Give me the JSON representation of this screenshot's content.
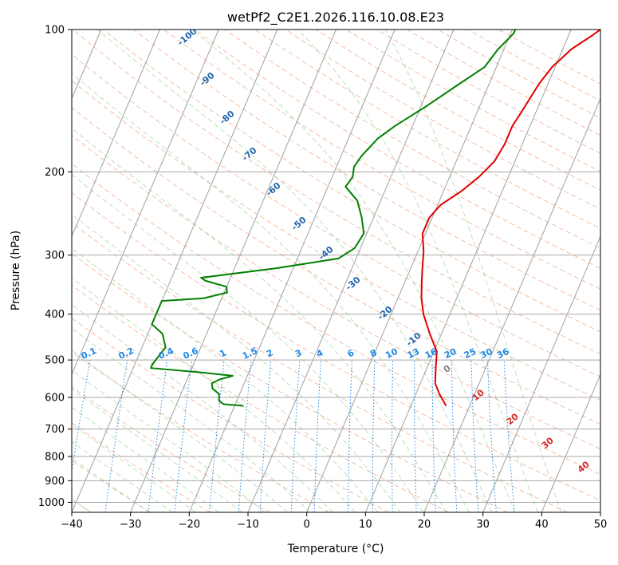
{
  "chart_data": {
    "type": "line",
    "title": "wetPf2_C2E1.2026.116.10.08.E23",
    "xlabel": "Temperature (°C)",
    "ylabel": "Pressure (hPa)",
    "xlim": [
      -40,
      50
    ],
    "ylim": [
      1050,
      100
    ],
    "y_scale": "log",
    "x_ticks": [
      -40,
      -30,
      -20,
      -10,
      0,
      10,
      20,
      30,
      40,
      50
    ],
    "x_tick_labels": [
      "−40",
      "−30",
      "−20",
      "−10",
      "0",
      "10",
      "20",
      "30",
      "40",
      "50"
    ],
    "y_ticks": [
      1000,
      900,
      800,
      700,
      600,
      500,
      400,
      300,
      200,
      100
    ],
    "y_tick_labels": [
      "1000",
      "900",
      "800",
      "700",
      "600",
      "500",
      "400",
      "300",
      "200",
      "100"
    ],
    "grid": true,
    "series": [
      {
        "color": "#e00000",
        "points": [
          [
            625,
            16
          ],
          [
            590,
            14
          ],
          [
            560,
            12.5
          ],
          [
            520,
            11.5
          ],
          [
            480,
            10.5
          ],
          [
            440,
            8
          ],
          [
            400,
            5.5
          ],
          [
            370,
            4
          ],
          [
            345,
            3
          ],
          [
            320,
            2
          ],
          [
            295,
            1
          ],
          [
            270,
            -0.5
          ],
          [
            250,
            -0.5
          ],
          [
            235,
            0.5
          ],
          [
            220,
            3
          ],
          [
            205,
            5
          ],
          [
            190,
            6.5
          ],
          [
            175,
            7
          ],
          [
            160,
            7
          ],
          [
            150,
            7.5
          ],
          [
            130,
            8.5
          ],
          [
            120,
            9.5
          ],
          [
            110,
            11.5
          ],
          [
            103,
            14
          ],
          [
            100,
            15
          ]
        ]
      },
      {
        "color": "#008000",
        "points": [
          [
            625,
            -18.5
          ],
          [
            620,
            -22
          ],
          [
            610,
            -23
          ],
          [
            590,
            -23.5
          ],
          [
            575,
            -25
          ],
          [
            560,
            -25.5
          ],
          [
            550,
            -24.5
          ],
          [
            540,
            -22.5
          ],
          [
            530,
            -29
          ],
          [
            520,
            -37
          ],
          [
            510,
            -37
          ],
          [
            470,
            -36
          ],
          [
            440,
            -37.5
          ],
          [
            420,
            -40
          ],
          [
            375,
            -40
          ],
          [
            370,
            -33
          ],
          [
            360,
            -29.5
          ],
          [
            350,
            -30
          ],
          [
            340,
            -34
          ],
          [
            335,
            -35
          ],
          [
            320,
            -23
          ],
          [
            305,
            -13
          ],
          [
            290,
            -11
          ],
          [
            270,
            -10.5
          ],
          [
            250,
            -12
          ],
          [
            230,
            -14
          ],
          [
            215,
            -17
          ],
          [
            205,
            -16.5
          ],
          [
            195,
            -17
          ],
          [
            185,
            -16.5
          ],
          [
            170,
            -15
          ],
          [
            160,
            -13
          ],
          [
            145,
            -9
          ],
          [
            130,
            -5
          ],
          [
            120,
            -2
          ],
          [
            110,
            -1
          ],
          [
            102,
            0.5
          ],
          [
            100,
            0.5
          ]
        ]
      }
    ],
    "dry_adiabat_labels": [
      "-100",
      "-90",
      "-80",
      "-70",
      "-60",
      "-50",
      "-40",
      "-30",
      "-20",
      "-10",
      "0",
      "10",
      "20",
      "30",
      "40"
    ],
    "mixing_ratio_labels": [
      "0.1",
      "0.2",
      "0.4",
      "0.6",
      "1",
      "1.5",
      "2",
      "3",
      "4",
      "6",
      "8",
      "10",
      "13",
      "16",
      "20",
      "25",
      "30",
      "36"
    ]
  }
}
